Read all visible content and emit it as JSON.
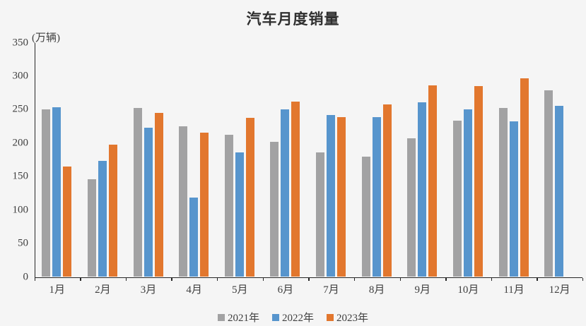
{
  "title": "汽车月度销量",
  "y_axis_unit_label": "(万辆)",
  "colors": {
    "background": "#f5f5f5",
    "axis": "#262626",
    "text": "#3f3f3f",
    "series_2021": "#a2a2a3",
    "series_2022": "#5795cd",
    "series_2023": "#e2772e"
  },
  "chart_data": {
    "type": "bar",
    "title": "汽车月度销量",
    "ylabel": "(万辆)",
    "xlabel": "",
    "categories": [
      "1月",
      "2月",
      "3月",
      "4月",
      "5月",
      "6月",
      "7月",
      "8月",
      "9月",
      "10月",
      "11月",
      "12月"
    ],
    "series": [
      {
        "name": "2021年",
        "color": "#a2a2a3",
        "values": [
          250.3,
          145.5,
          252.6,
          225.2,
          212.8,
          201.5,
          186.4,
          179.9,
          206.7,
          233.3,
          252.2,
          278.6
        ]
      },
      {
        "name": "2022年",
        "color": "#5795cd",
        "values": [
          253.1,
          173.7,
          223.4,
          118.1,
          186.2,
          250.2,
          242.0,
          238.3,
          261.0,
          250.5,
          232.8,
          255.6
        ]
      },
      {
        "name": "2023年",
        "color": "#e2772e",
        "values": [
          164.9,
          197.6,
          245.1,
          215.9,
          238.2,
          262.2,
          238.8,
          258.2,
          285.8,
          285.3,
          297.0,
          null
        ]
      }
    ],
    "ylim": [
      0,
      350
    ],
    "yticks": [
      0,
      50,
      100,
      150,
      200,
      250,
      300,
      350
    ],
    "grid": false,
    "legend_position": "bottom"
  }
}
